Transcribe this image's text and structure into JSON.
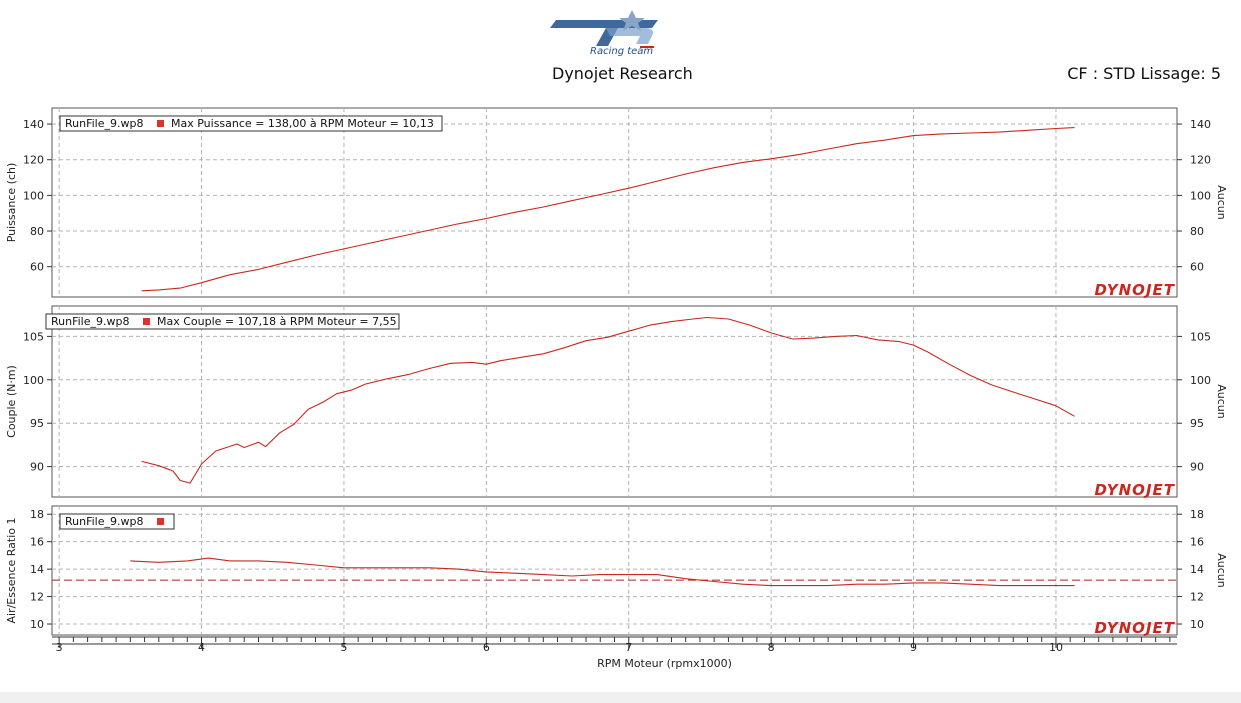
{
  "header": {
    "logo_text": "TCP",
    "logo_subtext": "Racing team",
    "title": "Dynojet Research",
    "correction": "CF : STD Lissage: 5"
  },
  "colors": {
    "trace": "#c8281e",
    "reference": "#b41e1e",
    "grid": "#b4b4b4",
    "legend_square": "#d9362b"
  },
  "chart_data": [
    {
      "type": "line",
      "ylabel": "Puissance (ch)",
      "ylabel_right": "Aucun",
      "ylim": [
        43,
        149
      ],
      "yticks": [
        60,
        80,
        100,
        120,
        140
      ],
      "legend": {
        "run": "RunFile_9.wp8",
        "text": "Max Puissance = 138,00 à RPM Moteur = 10,13"
      },
      "brand": "DYNOJET",
      "series": [
        {
          "x": [
            3.58,
            3.7,
            3.85,
            4.0,
            4.2,
            4.4,
            4.6,
            4.8,
            5.0,
            5.2,
            5.4,
            5.6,
            5.8,
            6.0,
            6.2,
            6.4,
            6.6,
            6.8,
            7.0,
            7.2,
            7.4,
            7.6,
            7.8,
            8.0,
            8.2,
            8.4,
            8.6,
            8.8,
            9.0,
            9.2,
            9.4,
            9.6,
            9.8,
            10.0,
            10.13
          ],
          "y": [
            46.5,
            47.0,
            48.0,
            51.0,
            55.5,
            58.5,
            62.5,
            66.5,
            70.0,
            73.5,
            77.0,
            80.5,
            84.0,
            87.0,
            90.5,
            93.5,
            97.0,
            100.5,
            104.0,
            108.0,
            112.0,
            115.5,
            118.5,
            120.5,
            123.0,
            126.0,
            129.0,
            131.0,
            133.5,
            134.5,
            135.0,
            135.5,
            136.5,
            137.5,
            138.0
          ]
        }
      ]
    },
    {
      "type": "line",
      "ylabel": "Couple (N·m)",
      "ylabel_right": "Aucun",
      "ylim": [
        86.5,
        108.5
      ],
      "yticks": [
        90,
        95,
        100,
        105
      ],
      "legend": {
        "run": "RunFile_9.wp8",
        "text": "Max Couple = 107,18 à RPM Moteur = 7,55"
      },
      "brand": "DYNOJET",
      "series": [
        {
          "x": [
            3.58,
            3.7,
            3.8,
            3.85,
            3.92,
            4.0,
            4.1,
            4.25,
            4.3,
            4.4,
            4.45,
            4.55,
            4.65,
            4.75,
            4.85,
            4.95,
            5.05,
            5.15,
            5.3,
            5.45,
            5.6,
            5.75,
            5.9,
            6.0,
            6.1,
            6.25,
            6.4,
            6.55,
            6.7,
            6.85,
            7.0,
            7.15,
            7.3,
            7.45,
            7.55,
            7.7,
            7.85,
            8.0,
            8.15,
            8.3,
            8.45,
            8.6,
            8.75,
            8.9,
            9.0,
            9.1,
            9.25,
            9.4,
            9.55,
            9.7,
            9.85,
            10.0,
            10.13
          ],
          "y": [
            90.6,
            90.1,
            89.5,
            88.4,
            88.1,
            90.3,
            91.8,
            92.6,
            92.2,
            92.8,
            92.3,
            93.9,
            94.9,
            96.6,
            97.4,
            98.4,
            98.8,
            99.5,
            100.1,
            100.6,
            101.3,
            101.9,
            102.0,
            101.8,
            102.2,
            102.6,
            103.0,
            103.7,
            104.5,
            104.9,
            105.6,
            106.3,
            106.7,
            107.0,
            107.18,
            107.0,
            106.3,
            105.4,
            104.7,
            104.8,
            105.0,
            105.1,
            104.6,
            104.4,
            104.0,
            103.2,
            101.8,
            100.5,
            99.4,
            98.6,
            97.8,
            97.0,
            95.8
          ]
        }
      ]
    },
    {
      "type": "line",
      "ylabel": "Air/Essence Ratio 1",
      "ylabel_right": "Aucun",
      "ylim": [
        9.2,
        18.6
      ],
      "yticks": [
        10,
        12,
        14,
        16,
        18
      ],
      "legend": {
        "run": "RunFile_9.wp8",
        "text": ""
      },
      "brand": "DYNOJET",
      "reference_line": 13.2,
      "series": [
        {
          "x": [
            3.5,
            3.7,
            3.9,
            4.05,
            4.2,
            4.4,
            4.6,
            4.8,
            5.0,
            5.2,
            5.4,
            5.6,
            5.8,
            6.0,
            6.2,
            6.4,
            6.6,
            6.8,
            7.0,
            7.2,
            7.4,
            7.6,
            7.8,
            8.0,
            8.2,
            8.4,
            8.6,
            8.8,
            9.0,
            9.2,
            9.4,
            9.6,
            9.8,
            10.0,
            10.13
          ],
          "y": [
            14.6,
            14.5,
            14.6,
            14.8,
            14.6,
            14.6,
            14.5,
            14.3,
            14.1,
            14.1,
            14.1,
            14.1,
            14.0,
            13.8,
            13.7,
            13.6,
            13.5,
            13.6,
            13.6,
            13.6,
            13.3,
            13.1,
            12.9,
            12.8,
            12.8,
            12.8,
            12.9,
            12.9,
            13.0,
            13.0,
            12.9,
            12.8,
            12.8,
            12.8,
            12.8
          ]
        }
      ]
    }
  ],
  "xaxis": {
    "label": "RPM Moteur (rpmx1000)",
    "xlim": [
      2.95,
      10.85
    ],
    "ticks": [
      3,
      4,
      5,
      6,
      7,
      8,
      9,
      10
    ],
    "minor_step": 0.1
  }
}
